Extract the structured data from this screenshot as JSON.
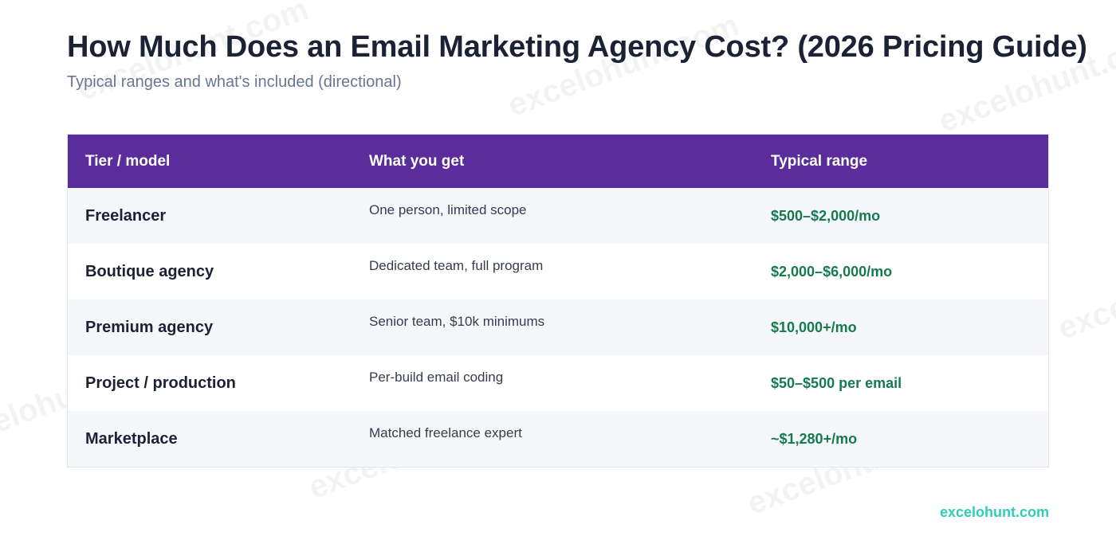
{
  "page": {
    "title": "How Much Does an Email Marketing Agency Cost? (2026 Pricing Guide)",
    "subtitle": "Typical ranges and what's included (directional)"
  },
  "table": {
    "headers": [
      "Tier / model",
      "What you get",
      "Typical range"
    ],
    "rows": [
      {
        "tier": "Freelancer",
        "includes": "One person, limited scope",
        "range": "$500–$2,000/mo"
      },
      {
        "tier": "Boutique agency",
        "includes": "Dedicated team, full program",
        "range": "$2,000–$6,000/mo"
      },
      {
        "tier": "Premium agency",
        "includes": "Senior team, $10k minimums",
        "range": "$10,000+/mo"
      },
      {
        "tier": "Project / production",
        "includes": "Per-build email coding",
        "range": "$50–$500 per email"
      },
      {
        "tier": "Marketplace",
        "includes": "Matched freelance expert",
        "range": "~$1,280+/mo"
      }
    ]
  },
  "footer": {
    "brand": "excelohunt.com"
  },
  "watermark": {
    "text": "excelohunt.com"
  },
  "colors": {
    "header_bg": "#5b2d9c",
    "price_text": "#157a4e",
    "brand_text": "#2fcfb3"
  }
}
